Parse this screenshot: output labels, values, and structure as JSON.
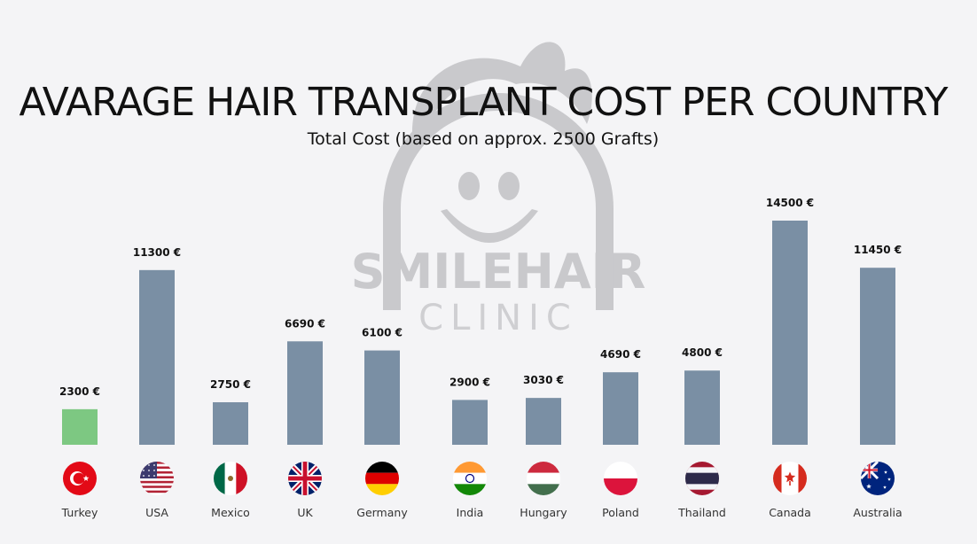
{
  "title": "AVARAGE HAIR TRANSPLANT COST PER COUNTRY",
  "subtitle": "Total Cost (based on approx. 2500 Grafts)",
  "watermark": {
    "brand_line1": "SMILEHAIR",
    "brand_line2": "CLINIC"
  },
  "colors": {
    "highlight_bar": "#7dc882",
    "default_bar": "#7a8fa4",
    "background": "#f4f4f6",
    "watermark": "#c9c9cc"
  },
  "chart_data": {
    "type": "bar",
    "title": "AVARAGE HAIR TRANSPLANT COST PER COUNTRY",
    "subtitle": "Total Cost (based on approx. 2500 Grafts)",
    "categories": [
      "Turkey",
      "USA",
      "Mexico",
      "UK",
      "Germany",
      "India",
      "Hungary",
      "Poland",
      "Thailand",
      "Canada",
      "Australia"
    ],
    "values": [
      2300,
      11300,
      2750,
      6690,
      6100,
      2900,
      3030,
      4690,
      4800,
      14500,
      11450
    ],
    "value_labels": [
      "2300 €",
      "11300 €",
      "2750 €",
      "6690 €",
      "6100 €",
      "2900 €",
      "3030 €",
      "4690 €",
      "4800 €",
      "14500 €",
      "11450 €"
    ],
    "highlight": "Turkey",
    "flags": [
      "turkey-flag-icon",
      "usa-flag-icon",
      "mexico-flag-icon",
      "uk-flag-icon",
      "germany-flag-icon",
      "india-flag-icon",
      "hungary-flag-icon",
      "poland-flag-icon",
      "thailand-flag-icon",
      "canada-flag-icon",
      "australia-flag-icon"
    ],
    "unit": "€",
    "ylim": [
      0,
      14500
    ],
    "grid": false,
    "legend": "none",
    "xlabel": "",
    "ylabel": ""
  }
}
